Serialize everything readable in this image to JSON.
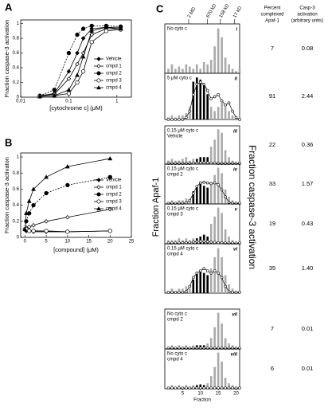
{
  "panels": [
    "A",
    "B",
    "C"
  ],
  "chart_data": [
    {
      "type": "line",
      "xlabel": "[cytochrome c] (μM)",
      "ylabel": "Fraction caspase-3 activation",
      "log_x": true,
      "xlim": [
        0.01,
        2
      ],
      "xticks": [
        0.01,
        0.1,
        1
      ],
      "ylim": [
        0,
        1.05
      ],
      "yticks": [
        0,
        0.2,
        0.4,
        0.6,
        0.8,
        1
      ],
      "legend": "lower right",
      "x": [
        0.025,
        0.05,
        0.1,
        0.15,
        0.2,
        0.3,
        0.6,
        1.2
      ],
      "series": [
        {
          "name": "Vehicle",
          "color": "#000",
          "marker": "diamond",
          "filled": true,
          "values": [
            0.02,
            0.05,
            0.35,
            0.6,
            0.8,
            0.93,
            0.95,
            0.95
          ]
        },
        {
          "name": "cmpd 1",
          "color": "#000",
          "marker": "diamond",
          "filled": false,
          "values": [
            0.02,
            0.04,
            0.25,
            0.45,
            0.6,
            0.85,
            0.93,
            0.93
          ]
        },
        {
          "name": "cmpd 2",
          "color": "#000",
          "marker": "circle",
          "filled": true,
          "values": [
            0.02,
            0.1,
            0.6,
            0.85,
            0.93,
            0.97,
            0.97,
            0.96
          ]
        },
        {
          "name": "cmpd 3",
          "color": "#000",
          "marker": "circle",
          "filled": false,
          "values": [
            0.01,
            0.02,
            0.05,
            0.2,
            0.35,
            0.75,
            0.9,
            0.92
          ]
        },
        {
          "name": "cmpd 4",
          "color": "#000",
          "marker": "triangle",
          "filled": true,
          "values": [
            0.01,
            0.02,
            0.1,
            0.3,
            0.55,
            0.9,
            0.95,
            0.93
          ]
        }
      ]
    },
    {
      "type": "line",
      "xlabel": "[compound] (μM)",
      "ylabel": "Fraction caspase-3 activaton",
      "log_x": false,
      "xlim": [
        -1,
        25
      ],
      "xticks": [
        0,
        5,
        10,
        15,
        20,
        25
      ],
      "ylim": [
        0,
        1.05
      ],
      "yticks": [
        0,
        0.2,
        0.4,
        0.6,
        0.8,
        1
      ],
      "legend": "right",
      "x": [
        0,
        0.3,
        1,
        2,
        5,
        10,
        20
      ],
      "series": [
        {
          "name": "Vehicle",
          "color": "#000",
          "marker": "diamond",
          "filled": true,
          "values": [
            0.1,
            0.08,
            0.08,
            0.07,
            0.07,
            0.07,
            0.08
          ]
        },
        {
          "name": "cmpd 1",
          "color": "#000",
          "marker": "diamond",
          "filled": false,
          "values": [
            0.1,
            0.12,
            0.13,
            0.15,
            0.2,
            0.25,
            0.35
          ]
        },
        {
          "name": "cmpd 2",
          "color": "#000",
          "marker": "circle",
          "filled": true,
          "values": [
            0.1,
            0.2,
            0.3,
            0.4,
            0.55,
            0.65,
            0.75
          ]
        },
        {
          "name": "cmpd 3",
          "color": "#000",
          "marker": "circle",
          "filled": false,
          "values": [
            0.1,
            0.1,
            0.08,
            0.08,
            0.08,
            0.07,
            0.08
          ]
        },
        {
          "name": "cmpd 4",
          "color": "#000",
          "marker": "triangle",
          "filled": true,
          "values": [
            0.1,
            0.3,
            0.45,
            0.6,
            0.75,
            0.88,
            0.98
          ]
        }
      ]
    },
    {
      "type": "bar",
      "numeral": "i",
      "annotation": [
        "No cyto c"
      ],
      "xlim": [
        0,
        21
      ],
      "ylim": [
        0,
        1.1
      ],
      "y2lim": [
        0,
        1
      ],
      "x": [
        1,
        2,
        3,
        4,
        5,
        6,
        7,
        8,
        9,
        10,
        11,
        12,
        13,
        14,
        15,
        16,
        17,
        18,
        19,
        20,
        21
      ],
      "series": [
        {
          "color": "#aaa",
          "values": [
            0.1,
            0.2,
            0.1,
            0.15,
            0.1,
            0.2,
            0.15,
            0.1,
            0.2,
            0.1,
            0.25,
            0.2,
            0.3,
            0.6,
            1,
            0.8,
            0.35,
            0.2,
            0.1,
            0.05,
            0.1
          ]
        }
      ]
    },
    {
      "type": "bar",
      "numeral": "ii",
      "annotation": [
        "5 μM cyto c"
      ],
      "xlim": [
        0,
        21
      ],
      "ylim": [
        0,
        1.1
      ],
      "y2lim": [
        0,
        1
      ],
      "x": [
        1,
        2,
        3,
        4,
        5,
        6,
        7,
        8,
        9,
        10,
        11,
        12,
        13,
        14,
        15,
        16,
        17,
        18,
        19,
        20,
        21
      ],
      "series": [
        {
          "color": "#aaa",
          "values": [
            0.05,
            0.1,
            0.05,
            0.1,
            0.1,
            0.15,
            0.3,
            null,
            null,
            null,
            null,
            null,
            0.3,
            0.2,
            0.3,
            0.4,
            0.3,
            0.2,
            0.1,
            0.05,
            0.05
          ]
        },
        {
          "color": "#000",
          "values": [
            null,
            null,
            null,
            null,
            null,
            null,
            null,
            0.9,
            1,
            0.95,
            0.85,
            0.6,
            null,
            null,
            null,
            null,
            null,
            null,
            null,
            null,
            null
          ]
        },
        {
          "color": "#000",
          "axis": "y2",
          "values": [
            0,
            0,
            0,
            0,
            0,
            0.05,
            0.2,
            0.6,
            0.85,
            0.9,
            0.85,
            0.7,
            0.5,
            0.55,
            0.6,
            0.45,
            0.35,
            0.4,
            0.2,
            0.05,
            0
          ]
        }
      ]
    },
    {
      "type": "bar",
      "numeral": "iii",
      "annotation": [
        "0.15 μM cyto c",
        "Vehicle"
      ],
      "xlim": [
        0,
        21
      ],
      "ylim": [
        0,
        1.1
      ],
      "y2lim": [
        0,
        1
      ],
      "x": [
        1,
        2,
        3,
        4,
        5,
        6,
        7,
        8,
        9,
        10,
        11,
        12,
        13,
        14,
        15,
        16,
        17,
        18,
        19,
        20,
        21
      ],
      "series": [
        {
          "color": "#aaa",
          "values": [
            0.1,
            0.15,
            0.1,
            0.1,
            0.15,
            0.2,
            0.1,
            0.15,
            null,
            null,
            null,
            null,
            0.5,
            0.7,
            1,
            0.9,
            0.4,
            0.2,
            0.1,
            0.05,
            0.1
          ]
        },
        {
          "color": "#000",
          "values": [
            null,
            null,
            null,
            null,
            null,
            null,
            null,
            null,
            0.15,
            0.2,
            0.2,
            0.2,
            null,
            null,
            null,
            null,
            null,
            null,
            null,
            null,
            null
          ]
        },
        {
          "color": "#000",
          "axis": "y2",
          "values": [
            0.02,
            0.02,
            0.02,
            0.02,
            0.02,
            0.02,
            0.02,
            0.03,
            0.03,
            0.04,
            0.04,
            0.04,
            0.03,
            0.03,
            0.02,
            0.02,
            0.02,
            0.02,
            0.02,
            0.02,
            0.02
          ]
        }
      ]
    },
    {
      "type": "bar",
      "numeral": "iv",
      "annotation": [
        "0.15 μM cyto c",
        "cmpd 2"
      ],
      "xlim": [
        0,
        21
      ],
      "ylim": [
        0,
        1.1
      ],
      "y2lim": [
        0,
        1
      ],
      "x": [
        1,
        2,
        3,
        4,
        5,
        6,
        7,
        8,
        9,
        10,
        11,
        12,
        13,
        14,
        15,
        16,
        17,
        18,
        19,
        20,
        21
      ],
      "series": [
        {
          "color": "#aaa",
          "values": [
            0.05,
            0.1,
            0.05,
            0.1,
            0.1,
            0.15,
            0.1,
            null,
            null,
            null,
            null,
            null,
            0.6,
            0.8,
            1,
            0.85,
            0.4,
            0.2,
            0.1,
            0.05,
            0.05
          ]
        },
        {
          "color": "#000",
          "values": [
            null,
            null,
            null,
            null,
            null,
            null,
            null,
            0.35,
            0.5,
            0.55,
            0.5,
            0.45,
            null,
            null,
            null,
            null,
            null,
            null,
            null,
            null,
            null
          ]
        },
        {
          "color": "#000",
          "axis": "y2",
          "values": [
            0.02,
            0.02,
            0.02,
            0.02,
            0.02,
            0.03,
            0.1,
            0.3,
            0.5,
            0.6,
            0.62,
            0.6,
            0.58,
            0.6,
            0.55,
            0.4,
            0.2,
            0.05,
            0.02,
            0.02,
            0.02
          ]
        }
      ]
    },
    {
      "type": "bar",
      "numeral": "v",
      "annotation": [
        "0.15 μM cyto c",
        "cmpd 3"
      ],
      "xlim": [
        0,
        21
      ],
      "ylim": [
        0,
        1.1
      ],
      "y2lim": [
        0,
        1
      ],
      "x": [
        1,
        2,
        3,
        4,
        5,
        6,
        7,
        8,
        9,
        10,
        11,
        12,
        13,
        14,
        15,
        16,
        17,
        18,
        19,
        20,
        21
      ],
      "series": [
        {
          "color": "#aaa",
          "values": [
            0.1,
            0.1,
            0.1,
            0.15,
            0.1,
            0.15,
            0.1,
            0.15,
            null,
            null,
            null,
            null,
            0.55,
            0.75,
            1,
            0.85,
            0.4,
            0.2,
            0.1,
            0.05,
            0.1
          ]
        },
        {
          "color": "#000",
          "values": [
            null,
            null,
            null,
            null,
            null,
            null,
            null,
            null,
            0.15,
            0.2,
            0.25,
            0.2,
            null,
            null,
            null,
            null,
            null,
            null,
            null,
            null,
            null
          ]
        },
        {
          "color": "#000",
          "axis": "y2",
          "values": [
            0.02,
            0.02,
            0.02,
            0.02,
            0.03,
            0.03,
            0.04,
            0.05,
            0.06,
            0.07,
            0.07,
            0.06,
            0.05,
            0.04,
            0.03,
            0.03,
            0.02,
            0.02,
            0.02,
            0.02,
            0.02
          ]
        }
      ]
    },
    {
      "type": "bar",
      "numeral": "vi",
      "annotation": [
        "0.15 μM cyto c",
        "cmpd 4"
      ],
      "xlim": [
        0,
        21
      ],
      "ylim": [
        0,
        1.1
      ],
      "y2lim": [
        0,
        1
      ],
      "x": [
        1,
        2,
        3,
        4,
        5,
        6,
        7,
        8,
        9,
        10,
        11,
        12,
        13,
        14,
        15,
        16,
        17,
        18,
        19,
        20,
        21
      ],
      "series": [
        {
          "color": "#aaa",
          "values": [
            0.05,
            0.1,
            0.05,
            0.1,
            0.1,
            0.15,
            0.1,
            null,
            null,
            null,
            null,
            null,
            0.55,
            0.8,
            1,
            0.8,
            0.4,
            0.2,
            0.1,
            0.05,
            0.05
          ]
        },
        {
          "color": "#000",
          "values": [
            null,
            null,
            null,
            null,
            null,
            null,
            null,
            0.3,
            0.45,
            0.5,
            0.45,
            0.4,
            null,
            null,
            null,
            null,
            null,
            null,
            null,
            null,
            null
          ]
        },
        {
          "color": "#000",
          "axis": "y2",
          "values": [
            0.02,
            0.02,
            0.02,
            0.02,
            0.02,
            0.03,
            0.15,
            0.35,
            0.45,
            0.5,
            0.55,
            0.5,
            0.45,
            0.5,
            0.45,
            0.35,
            0.15,
            0.04,
            0.02,
            0.02,
            0.02
          ]
        }
      ]
    },
    {
      "type": "bar",
      "numeral": "vii",
      "annotation": [
        "No cyto c",
        "cmpd 2"
      ],
      "xlim": [
        0,
        21
      ],
      "ylim": [
        0,
        1.1
      ],
      "y2lim": [
        0,
        1
      ],
      "x": [
        1,
        2,
        3,
        4,
        5,
        6,
        7,
        8,
        9,
        10,
        11,
        12,
        13,
        14,
        15,
        16,
        17,
        18,
        19,
        20,
        21
      ],
      "series": [
        {
          "color": "#aaa",
          "values": [
            0.05,
            0.1,
            0.05,
            0.1,
            0.05,
            0.1,
            0.05,
            0.1,
            null,
            null,
            null,
            0.15,
            0.3,
            0.6,
            1,
            0.7,
            0.3,
            0.15,
            0.1,
            0.05,
            0.05
          ]
        },
        {
          "color": "#000",
          "values": [
            null,
            null,
            null,
            null,
            null,
            null,
            null,
            null,
            0.1,
            0.1,
            0.1,
            null,
            null,
            null,
            null,
            null,
            null,
            null,
            null,
            null,
            null
          ]
        },
        {
          "color": "#000",
          "axis": "y2",
          "values": [
            0.02,
            0.02,
            0.02,
            0.02,
            0.02,
            0.02,
            0.02,
            0.02,
            0.02,
            0.02,
            0.02,
            0.02,
            0.02,
            0.02,
            0.02,
            0.02,
            0.02,
            0.02,
            0.02,
            0.02,
            0.02
          ]
        }
      ]
    },
    {
      "type": "bar",
      "numeral": "viii",
      "annotation": [
        "No cyto c",
        "cmpd 4"
      ],
      "xlim": [
        0,
        21
      ],
      "ylim": [
        0,
        1.1
      ],
      "y2lim": [
        0,
        1
      ],
      "xticks": [
        5,
        10,
        15,
        20
      ],
      "xlabel": "Fraction",
      "x": [
        1,
        2,
        3,
        4,
        5,
        6,
        7,
        8,
        9,
        10,
        11,
        12,
        13,
        14,
        15,
        16,
        17,
        18,
        19,
        20,
        21
      ],
      "series": [
        {
          "color": "#aaa",
          "values": [
            0.05,
            0.1,
            0.05,
            0.1,
            0.05,
            0.1,
            0.05,
            0.1,
            null,
            null,
            null,
            0.15,
            0.35,
            0.6,
            1,
            0.75,
            0.3,
            0.15,
            0.1,
            0.05,
            0.05
          ]
        },
        {
          "color": "#000",
          "values": [
            null,
            null,
            null,
            null,
            null,
            null,
            null,
            null,
            0.1,
            0.12,
            0.1,
            null,
            null,
            null,
            null,
            null,
            null,
            null,
            null,
            null,
            null
          ]
        },
        {
          "color": "#000",
          "axis": "y2",
          "values": [
            0.02,
            0.02,
            0.02,
            0.02,
            0.02,
            0.02,
            0.02,
            0.02,
            0.02,
            0.02,
            0.02,
            0.02,
            0.02,
            0.02,
            0.02,
            0.02,
            0.02,
            0.02,
            0.02,
            0.02,
            0.02
          ]
        }
      ]
    }
  ],
  "panel_c": {
    "ylabel": "Fraction Apaf-1",
    "y2label": "Fraction caspase-3 activation",
    "top_markers": [
      {
        "value": 6.7,
        "label": "2 MD"
      },
      {
        "value": 12,
        "label": "670 kD"
      },
      {
        "value": 15.6,
        "label": "158 kD"
      },
      {
        "value": 19.5,
        "label": "17 kD"
      }
    ]
  },
  "table": {
    "headers": [
      [
        "Percent",
        "complexed",
        "Apaf-1"
      ],
      [
        "Casp-3",
        "activation",
        "(arbitrary units)"
      ]
    ],
    "rows": [
      [
        "7",
        "0.08"
      ],
      [
        "91",
        "2.44"
      ],
      [
        "22",
        "0.36"
      ],
      [
        "33",
        "1.57"
      ],
      [
        "19",
        "0.43"
      ],
      [
        "35",
        "1.40"
      ],
      [
        "7",
        "0.01"
      ],
      [
        "6",
        "0.01"
      ]
    ]
  }
}
